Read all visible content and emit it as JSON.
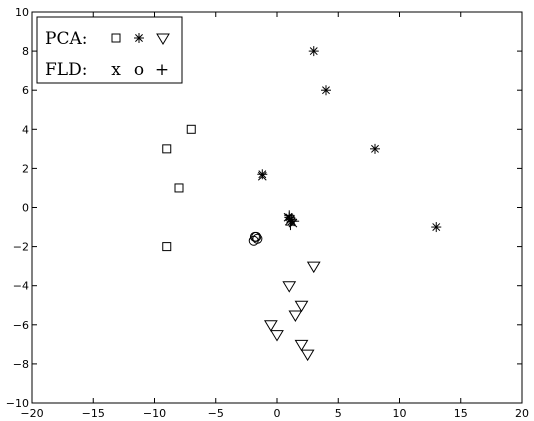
{
  "chart_data": {
    "type": "scatter",
    "xlim": [
      -20,
      20
    ],
    "ylim": [
      -10,
      10
    ],
    "xticks": [
      -20,
      -15,
      -10,
      -5,
      0,
      5,
      10,
      15,
      20
    ],
    "yticks": [
      -10,
      -8,
      -6,
      -4,
      -2,
      0,
      2,
      4,
      6,
      8,
      10
    ],
    "xtick_labels": [
      "−20",
      "−15",
      "−10",
      "−5",
      "0",
      "5",
      "10",
      "15",
      "20"
    ],
    "ytick_labels": [
      "−10",
      "−8",
      "−6",
      "−4",
      "−2",
      "0",
      "2",
      "4",
      "6",
      "8",
      "10"
    ],
    "grid": false,
    "legend_position": "top-left",
    "legend": {
      "rows": [
        {
          "label": "PCA:",
          "symbols": [
            "square",
            "asterisk",
            "triangle-down"
          ]
        },
        {
          "label": "FLD:",
          "symbols": [
            "x",
            "o",
            "+"
          ]
        }
      ]
    },
    "series": [
      {
        "marker": "square",
        "points": [
          [
            -7,
            4
          ],
          [
            -9,
            3
          ],
          [
            -8,
            1
          ],
          [
            -9,
            -2
          ]
        ]
      },
      {
        "marker": "asterisk",
        "points": [
          [
            3,
            8
          ],
          [
            4,
            6
          ],
          [
            8,
            3
          ],
          [
            13,
            -1
          ],
          [
            -1.2,
            1.7
          ],
          [
            1,
            -0.5
          ],
          [
            1.2,
            -0.7
          ]
        ]
      },
      {
        "marker": "triangle-down",
        "points": [
          [
            1,
            -4
          ],
          [
            3,
            -3
          ],
          [
            2,
            -5
          ],
          [
            1.5,
            -5.5
          ],
          [
            -0.5,
            -6
          ],
          [
            0,
            -6.5
          ],
          [
            2,
            -7
          ],
          [
            2.5,
            -7.5
          ]
        ]
      },
      {
        "marker": "x",
        "points": [
          [
            -1.2,
            1.6
          ],
          [
            0.9,
            -0.5
          ],
          [
            1.1,
            -0.6
          ],
          [
            1.3,
            -0.8
          ],
          [
            1.0,
            -0.7
          ]
        ]
      },
      {
        "marker": "o",
        "points": [
          [
            -1.8,
            -1.5
          ],
          [
            -1.6,
            -1.6
          ],
          [
            -1.9,
            -1.7
          ],
          [
            -1.7,
            -1.5
          ]
        ]
      },
      {
        "marker": "+",
        "points": [
          [
            1.0,
            -0.4
          ],
          [
            1.2,
            -0.6
          ],
          [
            1.4,
            -0.7
          ],
          [
            1.1,
            -0.9
          ]
        ]
      }
    ]
  }
}
